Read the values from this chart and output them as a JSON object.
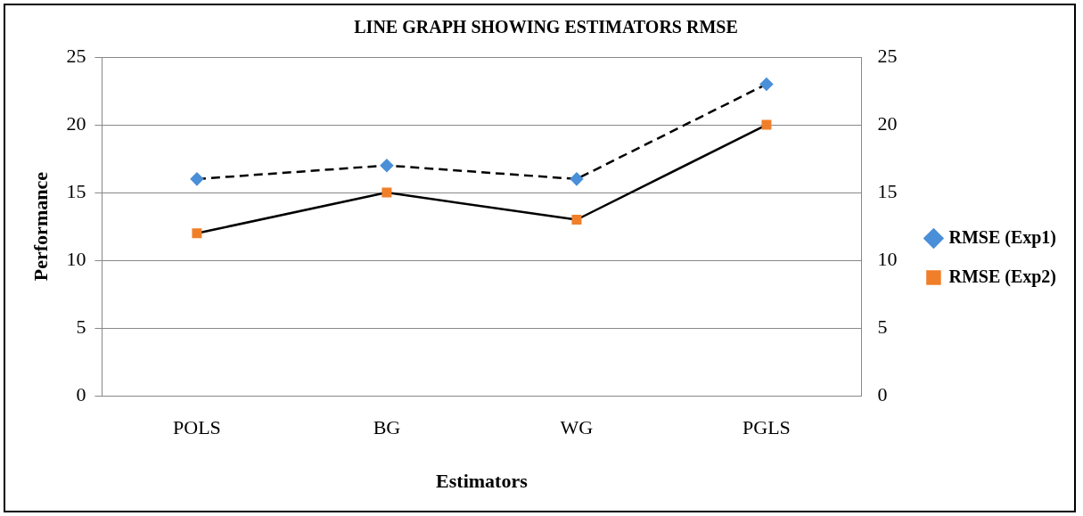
{
  "chart_data": {
    "type": "line",
    "title": "LINE GRAPH SHOWING ESTIMATORS RMSE",
    "xlabel": "Estimators",
    "ylabel": "Performance",
    "categories": [
      "POLS",
      "BG",
      "WG",
      "PGLS"
    ],
    "series": [
      {
        "name": "RMSE (Exp1)",
        "color": "#4a8fd8",
        "values": [
          16,
          17,
          16,
          23
        ],
        "marker": "diamond",
        "line_style": "dashed"
      },
      {
        "name": "RMSE (Exp2)",
        "color": "#f07f2a",
        "values": [
          12,
          15,
          13,
          20
        ],
        "marker": "square",
        "line_style": "solid"
      }
    ],
    "ylim": [
      0,
      25
    ],
    "yticks": [
      0,
      5,
      10,
      15,
      20,
      25
    ],
    "y2lim": [
      0,
      25
    ],
    "y2ticks": [
      0,
      5,
      10,
      15,
      20,
      25
    ],
    "grid": "y",
    "legend": "right"
  }
}
